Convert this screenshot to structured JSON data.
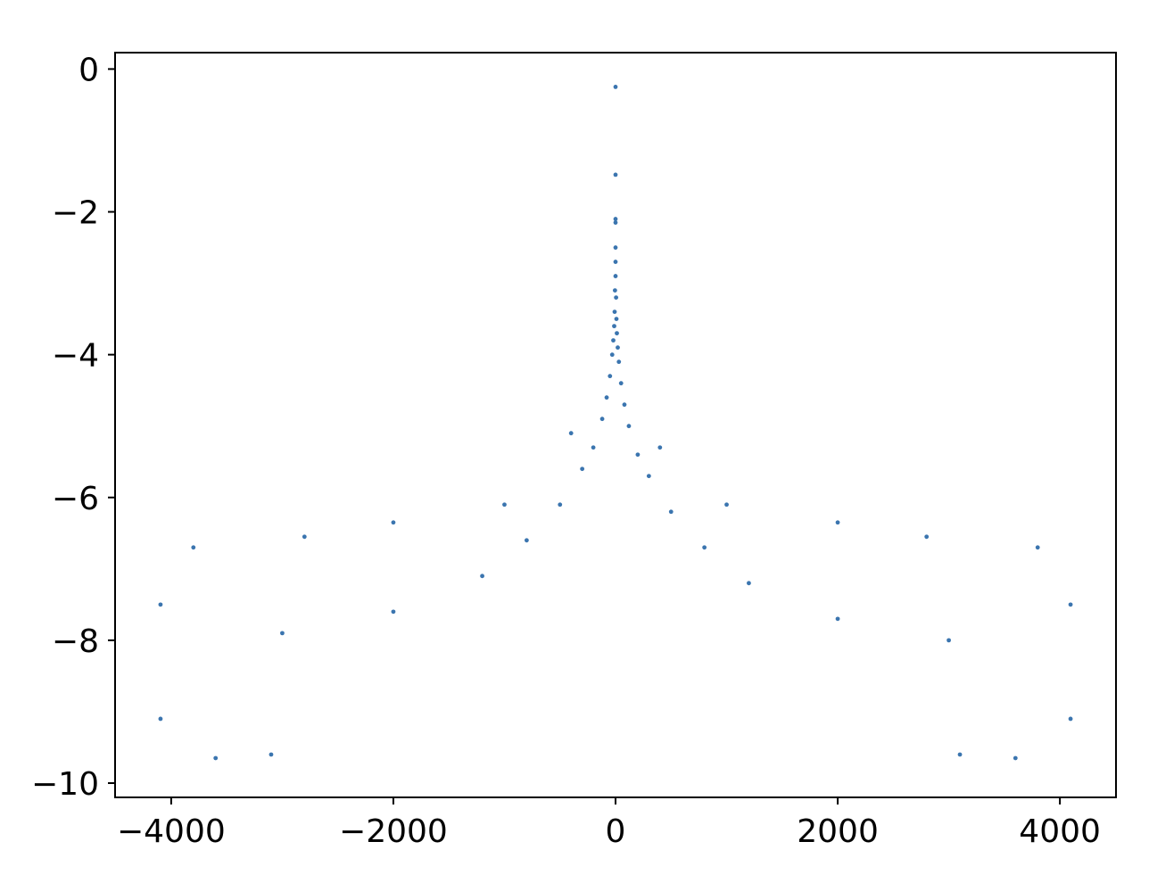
{
  "chart_data": {
    "type": "scatter",
    "title": "",
    "xlabel": "",
    "ylabel": "",
    "xlim": [
      -4505,
      4505
    ],
    "ylim": [
      -10.2,
      0.23
    ],
    "xticks": [
      -4000,
      -2000,
      0,
      2000,
      4000
    ],
    "yticks": [
      0,
      -2,
      -4,
      -6,
      -8,
      -10
    ],
    "xtick_labels": [
      "−4000",
      "−2000",
      "0",
      "2000",
      "4000"
    ],
    "ytick_labels": [
      "0",
      "−2",
      "−4",
      "−6",
      "−8",
      "−10"
    ],
    "grid": false,
    "legend": "none",
    "series": [
      {
        "color": "#3b75af",
        "marker": "dot",
        "description_of_shape": "symmetric about x=0",
        "x_range": [
          -4096,
          4096
        ],
        "peak": [
          0,
          -0.25
        ],
        "points": [
          [
            0,
            -0.25
          ],
          [
            0,
            -1.48
          ],
          [
            0,
            -2.1
          ],
          [
            0,
            -2.15
          ],
          [
            0,
            -2.5
          ],
          [
            0,
            -2.7
          ],
          [
            0,
            -2.9
          ],
          [
            -5,
            -3.1
          ],
          [
            5,
            -3.2
          ],
          [
            -8,
            -3.4
          ],
          [
            8,
            -3.5
          ],
          [
            -12,
            -3.6
          ],
          [
            12,
            -3.7
          ],
          [
            -20,
            -3.8
          ],
          [
            20,
            -3.9
          ],
          [
            -30,
            -4.0
          ],
          [
            30,
            -4.1
          ],
          [
            -50,
            -4.3
          ],
          [
            50,
            -4.4
          ],
          [
            -80,
            -4.6
          ],
          [
            80,
            -4.7
          ],
          [
            -120,
            -4.9
          ],
          [
            120,
            -5.0
          ],
          [
            -200,
            -5.3
          ],
          [
            200,
            -5.4
          ],
          [
            -300,
            -5.6
          ],
          [
            300,
            -5.7
          ],
          [
            -500,
            -6.1
          ],
          [
            500,
            -6.2
          ],
          [
            -800,
            -6.6
          ],
          [
            800,
            -6.7
          ],
          [
            -1200,
            -7.1
          ],
          [
            1200,
            -7.2
          ],
          [
            -2000,
            -7.6
          ],
          [
            2000,
            -7.7
          ],
          [
            -3000,
            -7.9
          ],
          [
            3000,
            -8.0
          ],
          [
            -3600,
            -9.65
          ],
          [
            3600,
            -9.65
          ],
          [
            -3100,
            -9.6
          ],
          [
            3100,
            -9.6
          ],
          [
            -4096,
            -7.5
          ],
          [
            4096,
            -7.5
          ],
          [
            -4096,
            -9.1
          ],
          [
            4096,
            -9.1
          ],
          [
            -3800,
            -6.7
          ],
          [
            3800,
            -6.7
          ],
          [
            -2800,
            -6.55
          ],
          [
            2800,
            -6.55
          ],
          [
            -2000,
            -6.35
          ],
          [
            2000,
            -6.35
          ],
          [
            -1000,
            -6.1
          ],
          [
            1000,
            -6.1
          ],
          [
            -400,
            -5.1
          ],
          [
            400,
            -5.3
          ]
        ]
      }
    ]
  }
}
